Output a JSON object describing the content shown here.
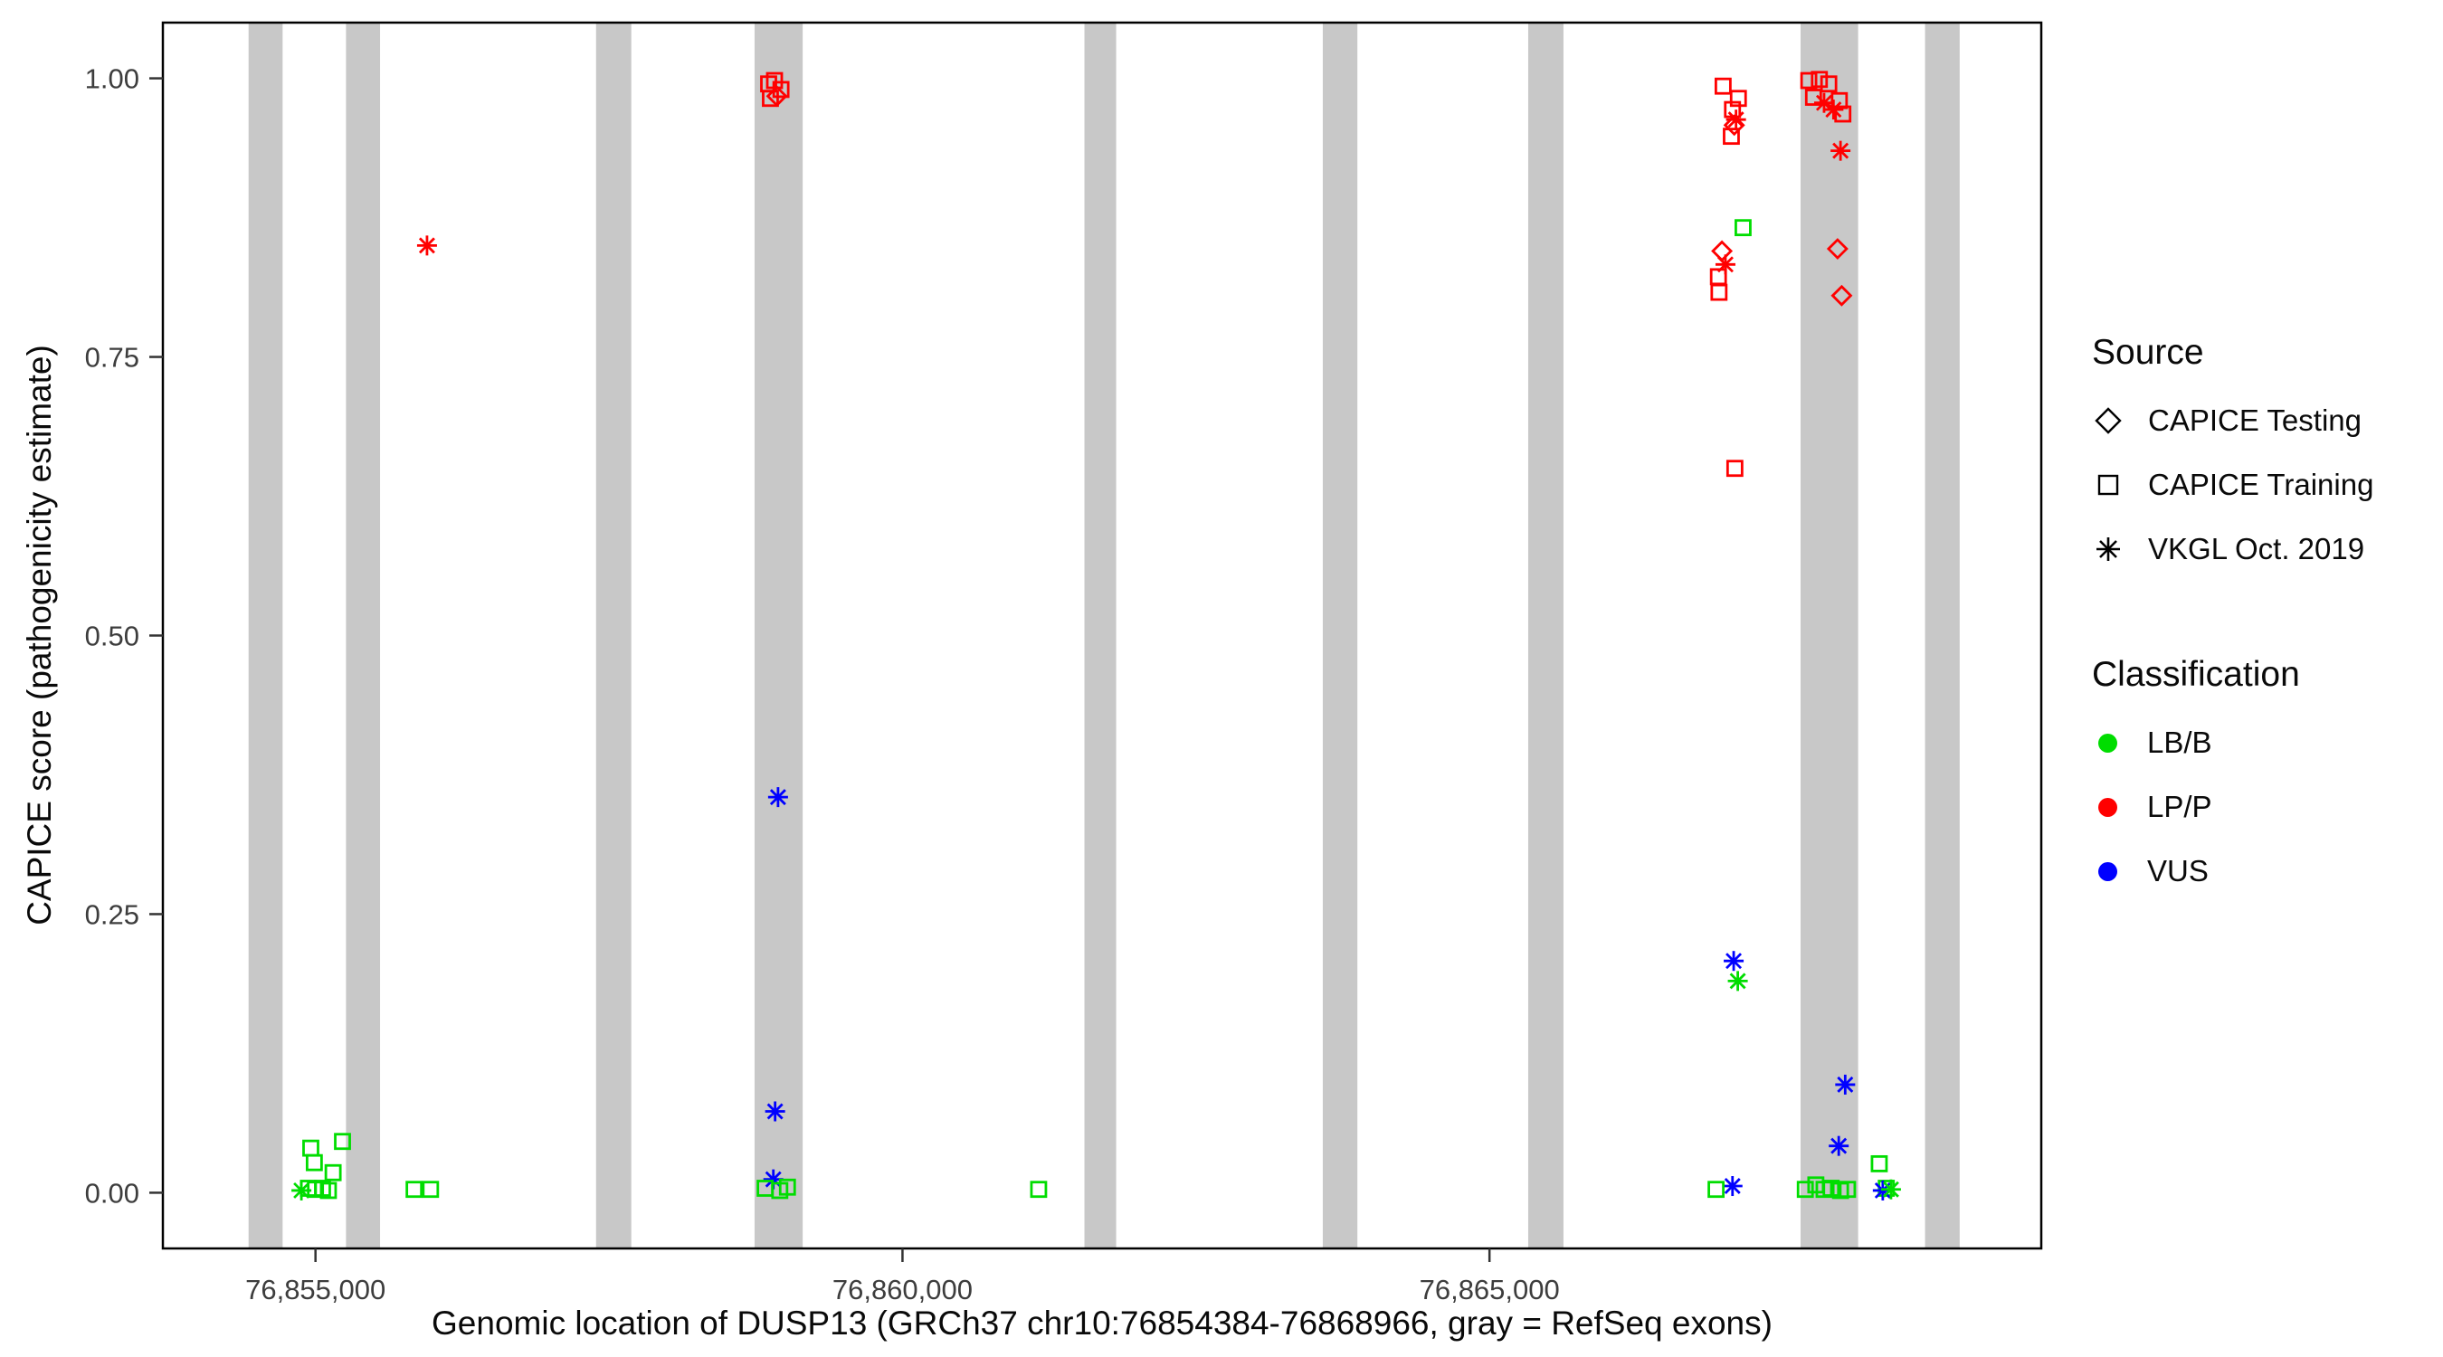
{
  "chart_data": {
    "type": "scatter",
    "title": "",
    "xlabel": "Genomic location of DUSP13 (GRCh37 chr10:76854384-76868966, gray = RefSeq exons)",
    "ylabel": "CAPICE score (pathogenicity estimate)",
    "xlim": [
      76853700,
      76869700
    ],
    "ylim": [
      -0.05,
      1.05
    ],
    "grid": false,
    "legend_position": "right",
    "x_ticks": [
      {
        "value": 76855000,
        "label": "76,855,000"
      },
      {
        "value": 76860000,
        "label": "76,860,000"
      },
      {
        "value": 76865000,
        "label": "76,865,000"
      }
    ],
    "y_ticks": [
      {
        "value": 0.0,
        "label": "0.00"
      },
      {
        "value": 0.25,
        "label": "0.25"
      },
      {
        "value": 0.5,
        "label": "0.50"
      },
      {
        "value": 0.75,
        "label": "0.75"
      },
      {
        "value": 1.0,
        "label": "1.00"
      }
    ],
    "exon_color": "#c8c8c8",
    "exons": [
      [
        76854430,
        76854720
      ],
      [
        76855260,
        76855550
      ],
      [
        76857390,
        76857690
      ],
      [
        76858740,
        76859150
      ],
      [
        76861550,
        76861820
      ],
      [
        76863580,
        76863875
      ],
      [
        76865330,
        76865630
      ],
      [
        76867650,
        76868140
      ],
      [
        76868710,
        76869005
      ]
    ],
    "shapes": {
      "testing": "diamond",
      "training": "square",
      "vkgl": "asterisk"
    },
    "colors": {
      "LB/B": "#00dd00",
      "LP/P": "#ff0000",
      "VUS": "#0000ff"
    },
    "legend": {
      "source": {
        "title": "Source",
        "items": [
          {
            "label": "CAPICE Testing",
            "shape": "diamond"
          },
          {
            "label": "CAPICE Training",
            "shape": "square"
          },
          {
            "label": "VKGL Oct. 2019",
            "shape": "asterisk"
          }
        ]
      },
      "classification": {
        "title": "Classification",
        "items": [
          {
            "label": "LB/B",
            "color": "#00dd00"
          },
          {
            "label": "LP/P",
            "color": "#ff0000"
          },
          {
            "label": "VUS",
            "color": "#0000ff"
          }
        ]
      }
    },
    "points": [
      {
        "x": 76854880,
        "y": 0.002,
        "s": "vkgl",
        "c": "LB/B"
      },
      {
        "x": 76854960,
        "y": 0.04,
        "s": "training",
        "c": "LB/B"
      },
      {
        "x": 76855230,
        "y": 0.046,
        "s": "training",
        "c": "LB/B"
      },
      {
        "x": 76854990,
        "y": 0.027,
        "s": "training",
        "c": "LB/B"
      },
      {
        "x": 76855150,
        "y": 0.018,
        "s": "training",
        "c": "LB/B"
      },
      {
        "x": 76854940,
        "y": 0.004,
        "s": "training",
        "c": "LB/B"
      },
      {
        "x": 76855000,
        "y": 0.003,
        "s": "training",
        "c": "LB/B"
      },
      {
        "x": 76855060,
        "y": 0.004,
        "s": "training",
        "c": "LB/B"
      },
      {
        "x": 76855110,
        "y": 0.002,
        "s": "training",
        "c": "LB/B"
      },
      {
        "x": 76855840,
        "y": 0.003,
        "s": "training",
        "c": "LB/B"
      },
      {
        "x": 76855980,
        "y": 0.003,
        "s": "training",
        "c": "LB/B"
      },
      {
        "x": 76855950,
        "y": 0.85,
        "s": "vkgl",
        "c": "LP/P"
      },
      {
        "x": 76858860,
        "y": 0.995,
        "s": "training",
        "c": "LP/P"
      },
      {
        "x": 76858910,
        "y": 0.998,
        "s": "training",
        "c": "LP/P"
      },
      {
        "x": 76858965,
        "y": 0.99,
        "s": "training",
        "c": "LP/P"
      },
      {
        "x": 76858875,
        "y": 0.982,
        "s": "training",
        "c": "LP/P"
      },
      {
        "x": 76858930,
        "y": 0.984,
        "s": "testing",
        "c": "LP/P"
      },
      {
        "x": 76858940,
        "y": 0.355,
        "s": "vkgl",
        "c": "VUS"
      },
      {
        "x": 76858915,
        "y": 0.073,
        "s": "vkgl",
        "c": "VUS"
      },
      {
        "x": 76858900,
        "y": 0.012,
        "s": "vkgl",
        "c": "VUS"
      },
      {
        "x": 76858830,
        "y": 0.004,
        "s": "training",
        "c": "LB/B"
      },
      {
        "x": 76858955,
        "y": 0.002,
        "s": "training",
        "c": "LB/B"
      },
      {
        "x": 76859020,
        "y": 0.005,
        "s": "training",
        "c": "LB/B"
      },
      {
        "x": 76861160,
        "y": 0.003,
        "s": "training",
        "c": "LB/B"
      },
      {
        "x": 76866990,
        "y": 0.993,
        "s": "training",
        "c": "LP/P"
      },
      {
        "x": 76867120,
        "y": 0.982,
        "s": "training",
        "c": "LP/P"
      },
      {
        "x": 76867070,
        "y": 0.972,
        "s": "training",
        "c": "LP/P"
      },
      {
        "x": 76867100,
        "y": 0.963,
        "s": "vkgl",
        "c": "LP/P"
      },
      {
        "x": 76867085,
        "y": 0.958,
        "s": "testing",
        "c": "LP/P"
      },
      {
        "x": 76867060,
        "y": 0.948,
        "s": "training",
        "c": "LP/P"
      },
      {
        "x": 76867160,
        "y": 0.866,
        "s": "training",
        "c": "LB/B"
      },
      {
        "x": 76866980,
        "y": 0.845,
        "s": "testing",
        "c": "LP/P"
      },
      {
        "x": 76867010,
        "y": 0.833,
        "s": "vkgl",
        "c": "LP/P"
      },
      {
        "x": 76866950,
        "y": 0.822,
        "s": "training",
        "c": "LP/P"
      },
      {
        "x": 76866955,
        "y": 0.808,
        "s": "training",
        "c": "LP/P"
      },
      {
        "x": 76867090,
        "y": 0.65,
        "s": "training",
        "c": "LP/P"
      },
      {
        "x": 76867080,
        "y": 0.208,
        "s": "vkgl",
        "c": "VUS"
      },
      {
        "x": 76867115,
        "y": 0.19,
        "s": "vkgl",
        "c": "LB/B"
      },
      {
        "x": 76867070,
        "y": 0.006,
        "s": "vkgl",
        "c": "VUS"
      },
      {
        "x": 76866930,
        "y": 0.003,
        "s": "training",
        "c": "LB/B"
      },
      {
        "x": 76867720,
        "y": 0.998,
        "s": "training",
        "c": "LP/P"
      },
      {
        "x": 76867810,
        "y": 0.999,
        "s": "training",
        "c": "LP/P"
      },
      {
        "x": 76867890,
        "y": 0.995,
        "s": "training",
        "c": "LP/P"
      },
      {
        "x": 76867760,
        "y": 0.983,
        "s": "training",
        "c": "LP/P"
      },
      {
        "x": 76867850,
        "y": 0.978,
        "s": "vkgl",
        "c": "LP/P"
      },
      {
        "x": 76867930,
        "y": 0.972,
        "s": "vkgl",
        "c": "LP/P"
      },
      {
        "x": 76867980,
        "y": 0.98,
        "s": "training",
        "c": "LP/P"
      },
      {
        "x": 76868010,
        "y": 0.968,
        "s": "training",
        "c": "LP/P"
      },
      {
        "x": 76867990,
        "y": 0.935,
        "s": "vkgl",
        "c": "LP/P"
      },
      {
        "x": 76867965,
        "y": 0.847,
        "s": "testing",
        "c": "LP/P"
      },
      {
        "x": 76868000,
        "y": 0.805,
        "s": "testing",
        "c": "LP/P"
      },
      {
        "x": 76868030,
        "y": 0.097,
        "s": "vkgl",
        "c": "VUS"
      },
      {
        "x": 76867975,
        "y": 0.042,
        "s": "vkgl",
        "c": "VUS"
      },
      {
        "x": 76867690,
        "y": 0.003,
        "s": "training",
        "c": "LB/B"
      },
      {
        "x": 76867780,
        "y": 0.007,
        "s": "training",
        "c": "LB/B"
      },
      {
        "x": 76867850,
        "y": 0.003,
        "s": "training",
        "c": "LB/B"
      },
      {
        "x": 76867910,
        "y": 0.004,
        "s": "training",
        "c": "LB/B"
      },
      {
        "x": 76867990,
        "y": 0.002,
        "s": "training",
        "c": "LB/B"
      },
      {
        "x": 76868050,
        "y": 0.003,
        "s": "training",
        "c": "LB/B"
      },
      {
        "x": 76868320,
        "y": 0.026,
        "s": "training",
        "c": "LB/B"
      },
      {
        "x": 76868380,
        "y": 0.004,
        "s": "training",
        "c": "LB/B"
      },
      {
        "x": 76868350,
        "y": 0.002,
        "s": "vkgl",
        "c": "VUS"
      },
      {
        "x": 76868420,
        "y": 0.003,
        "s": "vkgl",
        "c": "LB/B"
      }
    ]
  }
}
